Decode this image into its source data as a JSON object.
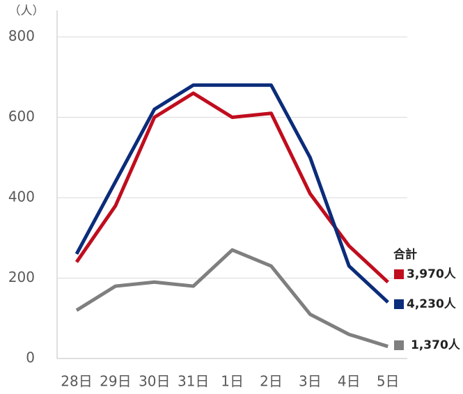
{
  "chart_data": {
    "type": "line",
    "y_unit": "（人）",
    "annotation": "合計",
    "categories": [
      "28日",
      "29日",
      "30日",
      "31日",
      "1日",
      "2日",
      "3日",
      "4日",
      "5日"
    ],
    "series": [
      {
        "color": "#c00d1e",
        "label": "3,970人",
        "values": [
          240,
          380,
          600,
          660,
          600,
          610,
          410,
          280,
          190
        ]
      },
      {
        "color": "#0b2c7a",
        "label": "4,230人",
        "values": [
          260,
          440,
          620,
          680,
          680,
          680,
          500,
          230,
          140
        ]
      },
      {
        "color": "#7f7f7f",
        "label": "1,370人",
        "values": [
          120,
          180,
          190,
          180,
          270,
          230,
          110,
          60,
          30
        ]
      }
    ],
    "ylim": [
      0,
      800
    ],
    "yticks": [
      0,
      200,
      400,
      600,
      800
    ],
    "grid": true
  }
}
